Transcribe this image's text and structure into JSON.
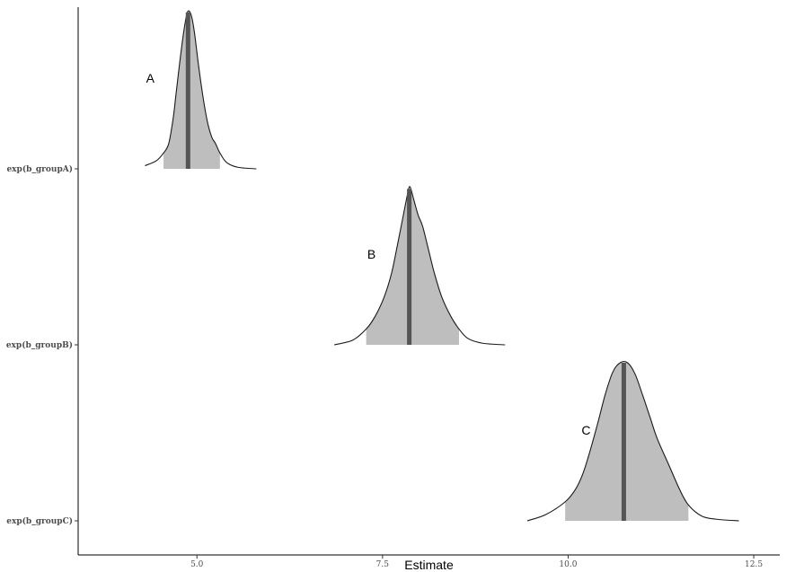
{
  "chart_data": {
    "type": "area",
    "xlabel": "Estimate",
    "ylabel": "",
    "xlim": [
      3.4,
      12.85
    ],
    "xticks": [
      5.0,
      7.5,
      10.0,
      12.5
    ],
    "xtick_labels": [
      "5.0",
      "7.5",
      "10.0",
      "12.5"
    ],
    "grid": false,
    "series": [
      {
        "name": "exp(b_groupA)",
        "annotation": "A",
        "median": 4.88,
        "interval": [
          4.55,
          5.31
        ],
        "range": [
          4.3,
          5.8
        ],
        "density_x": [
          4.3,
          4.45,
          4.55,
          4.62,
          4.68,
          4.72,
          4.77,
          4.82,
          4.86,
          4.89,
          4.93,
          4.97,
          5.02,
          5.08,
          5.14,
          5.2,
          5.25,
          5.31,
          5.4,
          5.55,
          5.8
        ],
        "density_y": [
          0.02,
          0.05,
          0.1,
          0.16,
          0.32,
          0.48,
          0.68,
          0.86,
          0.97,
          1.0,
          0.96,
          0.85,
          0.66,
          0.46,
          0.3,
          0.2,
          0.16,
          0.1,
          0.04,
          0.01,
          0.0
        ]
      },
      {
        "name": "exp(b_groupB)",
        "annotation": "B",
        "median": 7.86,
        "interval": [
          7.28,
          8.53
        ],
        "range": [
          6.85,
          9.15
        ],
        "density_x": [
          6.85,
          7.1,
          7.28,
          7.4,
          7.52,
          7.62,
          7.7,
          7.78,
          7.84,
          7.87,
          7.92,
          7.98,
          8.04,
          8.12,
          8.2,
          8.3,
          8.42,
          8.53,
          8.65,
          8.85,
          9.15
        ],
        "density_y": [
          0.0,
          0.03,
          0.1,
          0.18,
          0.3,
          0.45,
          0.63,
          0.82,
          0.96,
          1.0,
          0.92,
          0.82,
          0.75,
          0.6,
          0.45,
          0.3,
          0.18,
          0.1,
          0.04,
          0.01,
          0.0
        ]
      },
      {
        "name": "exp(b_groupC)",
        "annotation": "C",
        "median": 10.75,
        "interval": [
          9.96,
          11.62
        ],
        "range": [
          9.45,
          12.3
        ],
        "density_x": [
          9.45,
          9.7,
          9.96,
          10.1,
          10.2,
          10.3,
          10.4,
          10.5,
          10.6,
          10.7,
          10.8,
          10.9,
          11.0,
          11.1,
          11.2,
          11.35,
          11.5,
          11.62,
          11.8,
          12.0,
          12.3
        ],
        "density_y": [
          0.0,
          0.04,
          0.12,
          0.2,
          0.3,
          0.45,
          0.62,
          0.8,
          0.94,
          1.0,
          1.0,
          0.93,
          0.8,
          0.66,
          0.52,
          0.36,
          0.2,
          0.1,
          0.03,
          0.01,
          0.0
        ]
      }
    ]
  }
}
